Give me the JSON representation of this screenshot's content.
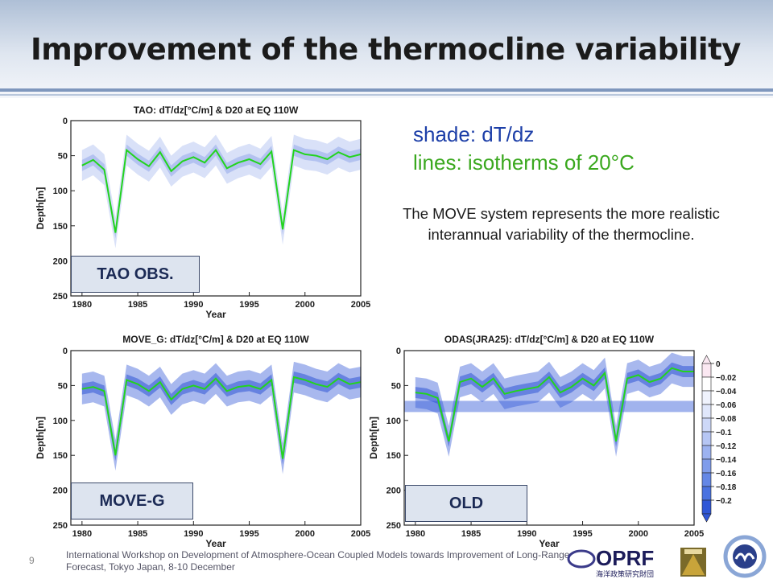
{
  "slide": {
    "title": "Improvement of the thermocline variability",
    "legend_shade": "shade: dT/dz",
    "legend_lines": "lines: isotherms of 20°C",
    "description": "The MOVE system represents the more realistic interannual variability of the thermocline.",
    "footer": "International Workshop on Development of Atmosphere-Ocean Coupled Models towards Improvement of Long-Range Forecast, Tokyo Japan, 8-10 December",
    "page_number": "9",
    "logo_text": "OPRF",
    "logo_subtext": "海洋政策研究財団",
    "colors": {
      "shade": "#2f56d6",
      "isotherm": "#22d41e",
      "tag_bg": "#dde4ef"
    }
  },
  "chart_data": [
    {
      "type": "heatmap",
      "title": "TAO: dT/dz[°C/m] & D20 at EQ 110W",
      "tag": "TAO OBS.",
      "xlabel": "Year",
      "ylabel": "Depth[m]",
      "xlim": [
        1979,
        2005
      ],
      "ylim": [
        250,
        0
      ],
      "xticks": [
        "1980",
        "1985",
        "1990",
        "1995",
        "2000",
        "2005"
      ],
      "yticks": [
        "0",
        "50",
        "100",
        "150",
        "200",
        "250"
      ],
      "d20": [
        [
          1980,
          64
        ],
        [
          1981,
          56
        ],
        [
          1982,
          70
        ],
        [
          1983,
          160
        ],
        [
          1984,
          42
        ],
        [
          1985,
          55
        ],
        [
          1986,
          65
        ],
        [
          1987,
          45
        ],
        [
          1988,
          72
        ],
        [
          1989,
          58
        ],
        [
          1990,
          52
        ],
        [
          1991,
          60
        ],
        [
          1992,
          42
        ],
        [
          1993,
          68
        ],
        [
          1994,
          60
        ],
        [
          1995,
          55
        ],
        [
          1996,
          62
        ],
        [
          1997,
          44
        ],
        [
          1998,
          155
        ],
        [
          1999,
          42
        ],
        [
          2000,
          48
        ],
        [
          2001,
          50
        ],
        [
          2002,
          55
        ],
        [
          2003,
          45
        ],
        [
          2004,
          52
        ],
        [
          2005,
          48
        ]
      ]
    },
    {
      "type": "heatmap",
      "title": "MOVE_G: dT/dz[°C/m] & D20 at EQ 110W",
      "tag": "MOVE-G",
      "xlabel": "Year",
      "ylabel": "Depth[m]",
      "xlim": [
        1979,
        2005
      ],
      "ylim": [
        250,
        0
      ],
      "xticks": [
        "1980",
        "1985",
        "1990",
        "1995",
        "2000",
        "2005"
      ],
      "yticks": [
        "0",
        "50",
        "100",
        "150",
        "200",
        "250"
      ],
      "d20": [
        [
          1980,
          55
        ],
        [
          1981,
          52
        ],
        [
          1982,
          58
        ],
        [
          1983,
          150
        ],
        [
          1984,
          42
        ],
        [
          1985,
          48
        ],
        [
          1986,
          58
        ],
        [
          1987,
          45
        ],
        [
          1988,
          70
        ],
        [
          1989,
          55
        ],
        [
          1990,
          50
        ],
        [
          1991,
          55
        ],
        [
          1992,
          40
        ],
        [
          1993,
          58
        ],
        [
          1994,
          52
        ],
        [
          1995,
          50
        ],
        [
          1996,
          55
        ],
        [
          1997,
          42
        ],
        [
          1998,
          155
        ],
        [
          1999,
          38
        ],
        [
          2000,
          42
        ],
        [
          2001,
          48
        ],
        [
          2002,
          52
        ],
        [
          2003,
          40
        ],
        [
          2004,
          48
        ],
        [
          2005,
          45
        ]
      ]
    },
    {
      "type": "heatmap",
      "title": "ODAS(JRA25): dT/dz[°C/m] & D20 at EQ 110W",
      "tag": "OLD",
      "xlabel": "Year",
      "ylabel": "Depth[m]",
      "xlim": [
        1979,
        2005
      ],
      "ylim": [
        250,
        0
      ],
      "xticks": [
        "1980",
        "1985",
        "1990",
        "1995",
        "2000",
        "2005"
      ],
      "yticks": [
        "0",
        "50",
        "100",
        "150",
        "200",
        "250"
      ],
      "d20": [
        [
          1980,
          60
        ],
        [
          1981,
          62
        ],
        [
          1982,
          68
        ],
        [
          1983,
          130
        ],
        [
          1984,
          45
        ],
        [
          1985,
          40
        ],
        [
          1986,
          52
        ],
        [
          1987,
          40
        ],
        [
          1988,
          62
        ],
        [
          1989,
          58
        ],
        [
          1990,
          55
        ],
        [
          1991,
          52
        ],
        [
          1992,
          38
        ],
        [
          1993,
          60
        ],
        [
          1994,
          52
        ],
        [
          1995,
          40
        ],
        [
          1996,
          50
        ],
        [
          1997,
          32
        ],
        [
          1998,
          130
        ],
        [
          1999,
          40
        ],
        [
          2000,
          35
        ],
        [
          2001,
          45
        ],
        [
          2002,
          40
        ],
        [
          2003,
          25
        ],
        [
          2004,
          30
        ],
        [
          2005,
          30
        ]
      ]
    }
  ],
  "colorbar": {
    "labels": [
      "0",
      "−0.02",
      "−0.04",
      "−0.06",
      "−0.08",
      "−0.1",
      "−0.12",
      "−0.14",
      "−0.16",
      "−0.18",
      "−0.2"
    ],
    "colors": [
      "#fbe8f2",
      "#ffffff",
      "#f0f3fd",
      "#e0e7fb",
      "#cdd8f8",
      "#b6c6f4",
      "#9cb2f0",
      "#7f9ceb",
      "#6487e6",
      "#4a72e0",
      "#2f56d6"
    ]
  }
}
